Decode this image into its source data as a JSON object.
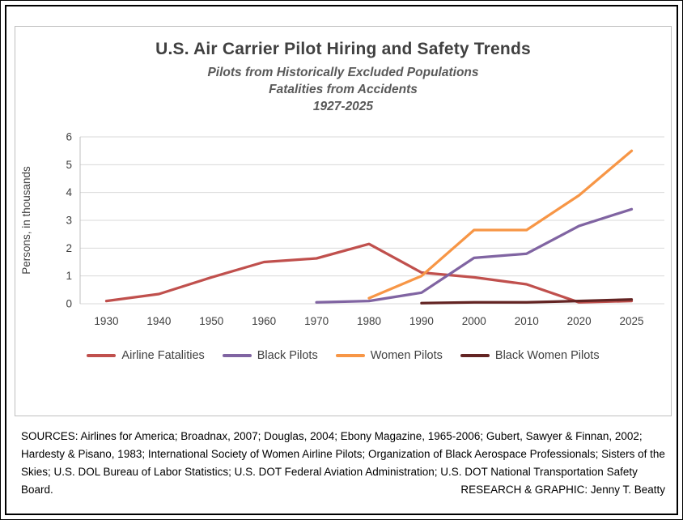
{
  "chart_data": {
    "type": "line",
    "title": "U.S. Air Carrier Pilot Hiring and Safety Trends",
    "subtitle": [
      "Pilots from Historically Excluded Populations",
      "Fatalities from Accidents",
      "1927-2025"
    ],
    "ylabel": "Persons, in thousands",
    "ylim": [
      0,
      6
    ],
    "yticks": [
      0,
      1,
      2,
      3,
      4,
      5,
      6
    ],
    "categories": [
      "1930",
      "1940",
      "1950",
      "1960",
      "1970",
      "1980",
      "1990",
      "2000",
      "2010",
      "2020",
      "2025"
    ],
    "grid": true,
    "legend_position": "bottom",
    "series": [
      {
        "name": "Airline Fatalities",
        "color": "#C0504D",
        "values": [
          0.1,
          0.35,
          0.95,
          1.5,
          1.63,
          2.15,
          1.12,
          0.95,
          0.7,
          0.05,
          0.1
        ]
      },
      {
        "name": "Black Pilots",
        "color": "#8064A2",
        "values": [
          null,
          null,
          null,
          null,
          0.05,
          0.1,
          0.4,
          1.65,
          1.8,
          2.8,
          3.4
        ]
      },
      {
        "name": "Women Pilots",
        "color": "#F79646",
        "values": [
          null,
          null,
          null,
          null,
          null,
          0.2,
          1.0,
          2.65,
          2.65,
          3.9,
          5.5
        ]
      },
      {
        "name": "Black Women Pilots",
        "color": "#632423",
        "values": [
          null,
          null,
          null,
          null,
          null,
          null,
          0.02,
          0.05,
          0.05,
          0.1,
          0.15
        ]
      }
    ],
    "colors": {
      "title": "#404040",
      "subtitle": "#595959",
      "tick_label": "#404040",
      "gridline": "#D9D9D9",
      "axis_line": "#BFBFBF"
    }
  },
  "footer": {
    "sources": "SOURCES: Airlines for America; Broadnax, 2007; Douglas, 2004; Ebony Magazine, 1965-2006; Gubert, Sawyer & Finnan, 2002; Hardesty & Pisano, 1983; International Society of Women Airline Pilots; Organization of Black Aerospace Professionals; Sisters of the Skies; U.S. DOL Bureau of Labor Statistics; U.S. DOT Federal Aviation Administration; U.S. DOT National Transportation Safety Board.",
    "credit": "RESEARCH & GRAPHIC: Jenny T. Beatty"
  }
}
